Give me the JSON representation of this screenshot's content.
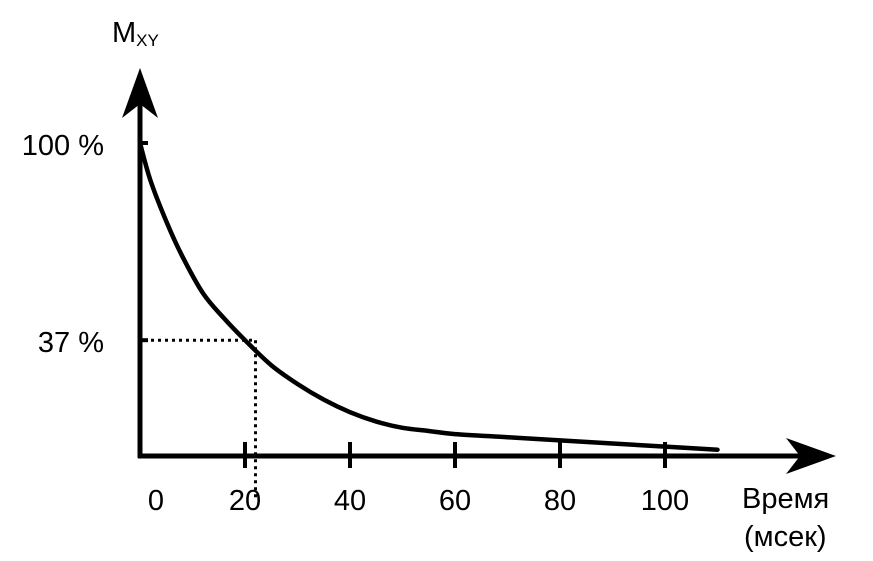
{
  "chart_data": {
    "type": "line",
    "ylabel_main": "M",
    "ylabel_sub": "XY",
    "xlabel_line1": "Время",
    "xlabel_line2": "(мсек)",
    "y_tick_labels": [
      "100 %",
      "37 %"
    ],
    "y_ticks": [
      100,
      37
    ],
    "x_tick_labels": [
      "0",
      "20",
      "40",
      "60",
      "80",
      "100"
    ],
    "x_ticks": [
      0,
      20,
      40,
      60,
      80,
      100
    ],
    "xlim": [
      0,
      110
    ],
    "ylim": [
      0,
      100
    ],
    "series": [
      {
        "x": [
          0,
          2,
          5,
          8,
          12,
          16,
          20,
          25,
          30,
          35,
          40,
          45,
          50,
          55,
          60,
          70,
          80,
          90,
          100,
          110
        ],
        "values": [
          100,
          88,
          75,
          64,
          52,
          44,
          37,
          29,
          23,
          18,
          14,
          11,
          9,
          8,
          7,
          6,
          5,
          4,
          3,
          2
        ]
      }
    ],
    "annotation": {
      "x": 22,
      "y": 37,
      "style": "dotted"
    }
  }
}
